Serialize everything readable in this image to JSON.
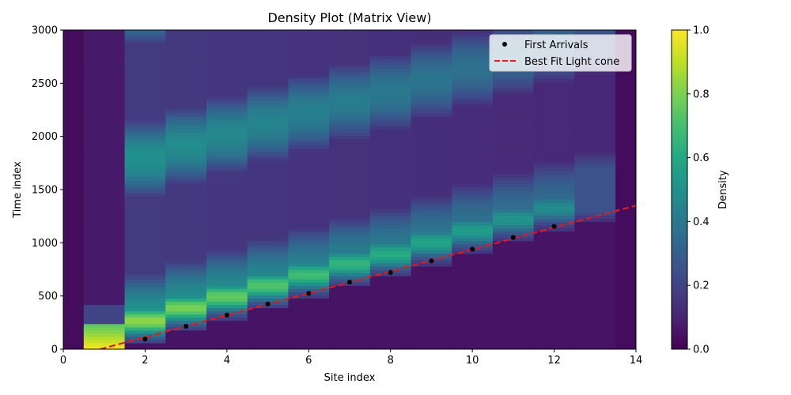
{
  "chart_data": {
    "type": "heatmap",
    "title": "Density Plot (Matrix View)",
    "xlabel": "Site index",
    "ylabel": "Time index",
    "xlim": [
      0,
      14
    ],
    "ylim": [
      0,
      3000
    ],
    "x_ticks": [
      0,
      2,
      4,
      6,
      8,
      10,
      12,
      14
    ],
    "y_ticks": [
      0,
      500,
      1000,
      1500,
      2000,
      2500,
      3000
    ],
    "colormap": "viridis",
    "colorbar": {
      "label": "Density",
      "range": [
        0,
        1
      ],
      "ticks": [
        0.0,
        0.2,
        0.4,
        0.6,
        0.8,
        1.0
      ],
      "tick_labels": [
        "0.0",
        "0.2",
        "0.4",
        "0.6",
        "0.8",
        "1.0"
      ]
    },
    "sites": [
      0,
      1,
      2,
      3,
      4,
      5,
      6,
      7,
      8,
      9,
      10,
      11,
      12,
      13,
      14
    ],
    "first_arrivals": {
      "name": "First Arrivals",
      "color": "#000000",
      "points": [
        {
          "x": 2,
          "y": 95
        },
        {
          "x": 3,
          "y": 215
        },
        {
          "x": 4,
          "y": 320
        },
        {
          "x": 5,
          "y": 425
        },
        {
          "x": 6,
          "y": 525
        },
        {
          "x": 7,
          "y": 630
        },
        {
          "x": 8,
          "y": 720
        },
        {
          "x": 9,
          "y": 830
        },
        {
          "x": 10,
          "y": 940
        },
        {
          "x": 11,
          "y": 1050
        },
        {
          "x": 12,
          "y": 1155
        }
      ]
    },
    "fit_line": {
      "name": "Best Fit Light cone",
      "color": "#e31a1c",
      "style": "dashed",
      "x": [
        0.9,
        14
      ],
      "y": [
        0,
        1350
      ]
    },
    "legend": {
      "placement": "top-right",
      "entries": [
        "First Arrivals",
        "Best Fit Light cone"
      ]
    }
  }
}
